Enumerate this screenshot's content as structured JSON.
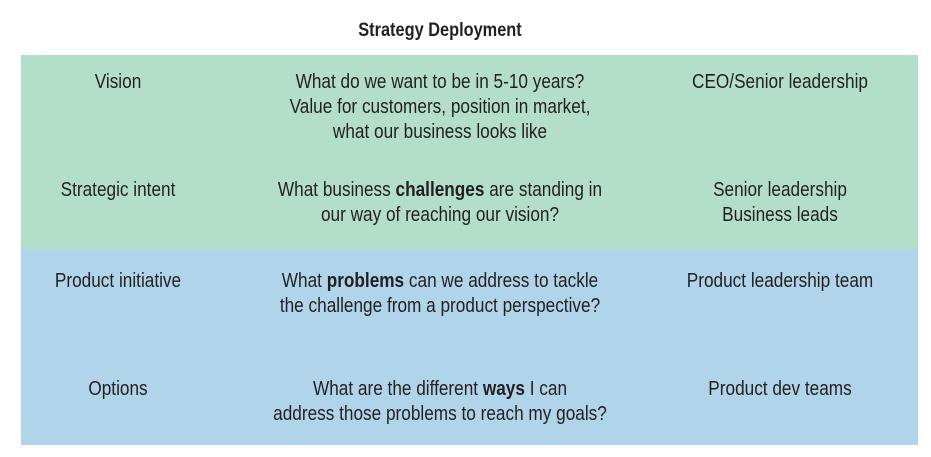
{
  "title": "Strategy Deployment",
  "colors": {
    "top_band": "#b3dfca",
    "bottom_band": "#b0d4ea"
  },
  "rows": [
    {
      "level": "Vision",
      "question_lines": [
        {
          "before": "What do we want to be in 5-10 years?",
          "bold": "",
          "after": ""
        },
        {
          "before": "Value for customers, position in market,",
          "bold": "",
          "after": ""
        },
        {
          "before": "what our business looks like",
          "bold": "",
          "after": ""
        }
      ],
      "owner_lines": [
        "CEO/Senior leadership"
      ]
    },
    {
      "level": "Strategic intent",
      "question_lines": [
        {
          "before": "What business ",
          "bold": "challenges",
          "after": " are standing in"
        },
        {
          "before": "our way of reaching our vision?",
          "bold": "",
          "after": ""
        }
      ],
      "owner_lines": [
        "Senior leadership",
        "Business leads"
      ]
    },
    {
      "level": "Product initiative",
      "question_lines": [
        {
          "before": "What ",
          "bold": "problems",
          "after": " can we address to tackle"
        },
        {
          "before": "the challenge from a product perspective?",
          "bold": "",
          "after": ""
        }
      ],
      "owner_lines": [
        "Product leadership team"
      ]
    },
    {
      "level": "Options",
      "question_lines": [
        {
          "before": "What are the different ",
          "bold": "ways",
          "after": " I can"
        },
        {
          "before": "address those problems to reach my goals?",
          "bold": "",
          "after": ""
        }
      ],
      "owner_lines": [
        "Product dev teams"
      ]
    }
  ]
}
